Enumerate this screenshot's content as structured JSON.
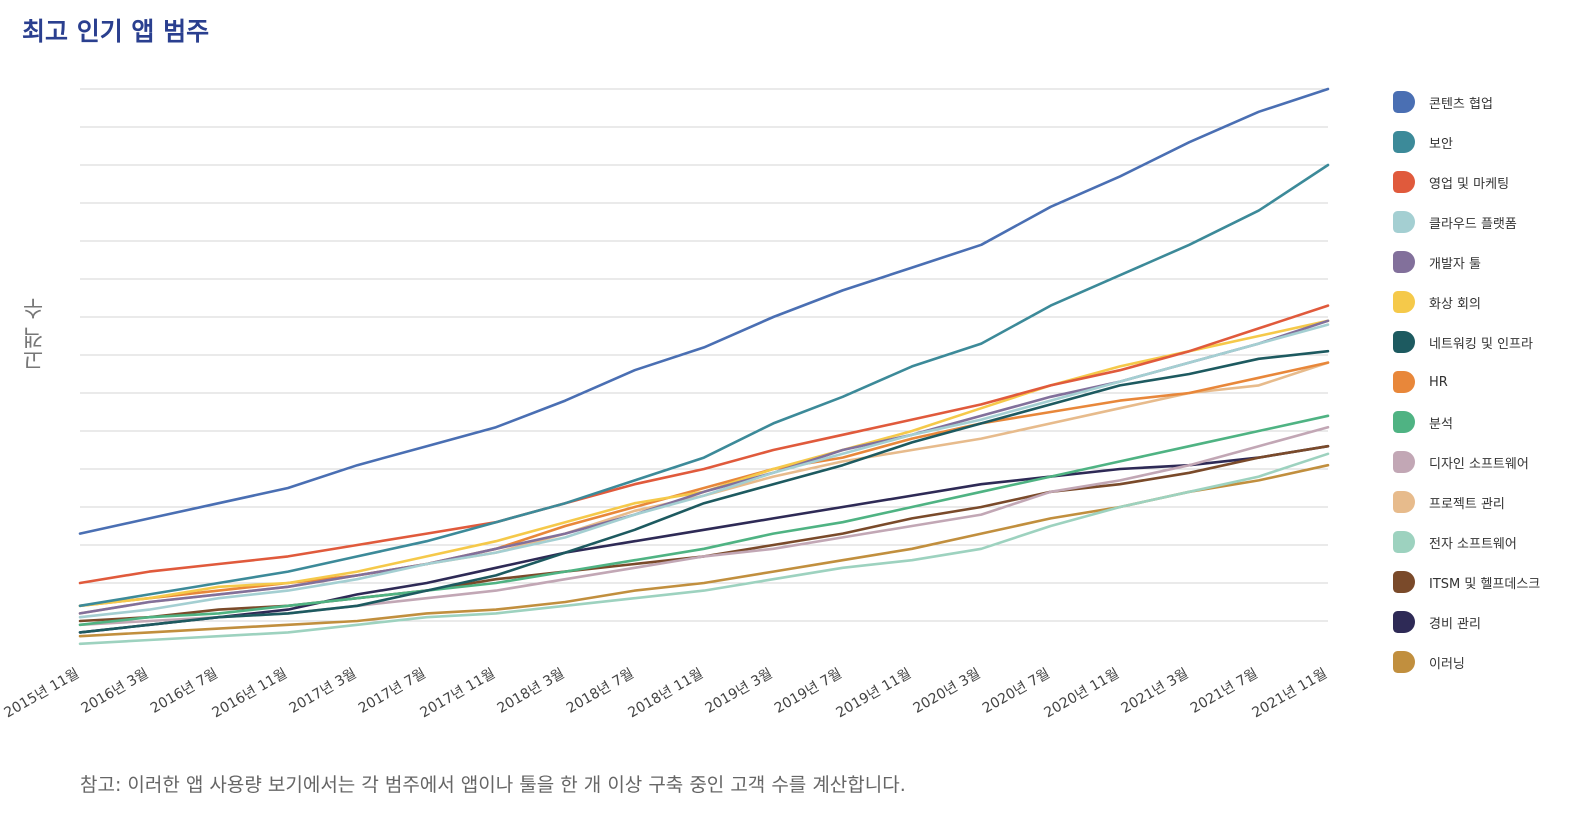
{
  "title": "최고 인기 앱 범주",
  "note": "참고: 이러한 앱 사용량 보기에서는 각 범주에서 앱이나 툴을 한 개 이상 구축 중인 고객 수를 계산합니다.",
  "chart_data": {
    "type": "line",
    "title": "최고 인기 앱 범주",
    "ylabel": "고객 수",
    "xlabel": "",
    "y_tick_labels": "none",
    "grid": true,
    "legend_position": "right",
    "x": [
      "2015년 11월",
      "2016년 3월",
      "2016년 7월",
      "2016년 11월",
      "2017년 3월",
      "2017년 7월",
      "2017년 11월",
      "2018년 3월",
      "2018년 7월",
      "2018년 11월",
      "2019년 3월",
      "2019년 7월",
      "2019년 11월",
      "2020년 3월",
      "2020년 7월",
      "2020년 11월",
      "2021년 3월",
      "2021년 7월",
      "2021년 11월"
    ],
    "ylim": [
      0,
      14
    ],
    "series": [
      {
        "name": "콘텐츠 협업",
        "color": "#4a6fb3",
        "values": [
          2.3,
          2.7,
          3.1,
          3.5,
          4.1,
          4.6,
          5.1,
          5.8,
          6.6,
          7.2,
          8.0,
          8.7,
          9.3,
          9.9,
          10.9,
          11.7,
          12.6,
          13.4,
          14.0
        ]
      },
      {
        "name": "보안",
        "color": "#3c8a99",
        "values": [
          0.4,
          0.7,
          1.0,
          1.3,
          1.7,
          2.1,
          2.6,
          3.1,
          3.7,
          4.3,
          5.2,
          5.9,
          6.7,
          7.3,
          8.3,
          9.1,
          9.9,
          10.8,
          12.0
        ]
      },
      {
        "name": "영업 및 마케팅",
        "color": "#e05a3c",
        "values": [
          1.0,
          1.3,
          1.5,
          1.7,
          2.0,
          2.3,
          2.6,
          3.1,
          3.6,
          4.0,
          4.5,
          4.9,
          5.3,
          5.7,
          6.2,
          6.6,
          7.1,
          7.7,
          8.3
        ]
      },
      {
        "name": "클라우드 플랫폼",
        "color": "#a4cfd2",
        "values": [
          0.1,
          0.3,
          0.6,
          0.8,
          1.1,
          1.5,
          1.8,
          2.2,
          2.8,
          3.3,
          3.9,
          4.4,
          4.9,
          5.3,
          5.8,
          6.3,
          6.8,
          7.3,
          7.8
        ]
      },
      {
        "name": "개발자 툴",
        "color": "#82709b",
        "values": [
          0.2,
          0.5,
          0.7,
          0.9,
          1.2,
          1.5,
          1.9,
          2.3,
          2.8,
          3.4,
          3.9,
          4.5,
          4.9,
          5.4,
          5.9,
          6.3,
          6.8,
          7.3,
          7.9
        ]
      },
      {
        "name": "화상 회의",
        "color": "#f5c94a",
        "values": [
          0.4,
          0.6,
          0.9,
          1.0,
          1.3,
          1.7,
          2.1,
          2.6,
          3.1,
          3.4,
          4.0,
          4.5,
          5.0,
          5.6,
          6.2,
          6.7,
          7.1,
          7.5,
          7.9
        ]
      },
      {
        "name": "네트워킹 및 인프라",
        "color": "#1d5a60",
        "values": [
          -0.3,
          -0.1,
          0.1,
          0.2,
          0.4,
          0.8,
          1.2,
          1.8,
          2.4,
          3.1,
          3.6,
          4.1,
          4.7,
          5.2,
          5.7,
          6.2,
          6.5,
          6.9,
          7.1
        ]
      },
      {
        "name": "HR",
        "color": "#e8873a",
        "values": [
          0.4,
          0.6,
          0.8,
          1.0,
          1.2,
          1.5,
          1.9,
          2.5,
          3.0,
          3.5,
          4.0,
          4.3,
          4.8,
          5.2,
          5.5,
          5.8,
          6.0,
          6.4,
          6.8
        ]
      },
      {
        "name": "분석",
        "color": "#4fb383",
        "values": [
          -0.1,
          0.1,
          0.2,
          0.4,
          0.6,
          0.8,
          1.0,
          1.3,
          1.6,
          1.9,
          2.3,
          2.6,
          3.0,
          3.4,
          3.8,
          4.2,
          4.6,
          5.0,
          5.4
        ]
      },
      {
        "name": "디자인 소프트웨어",
        "color": "#c2a7b5",
        "values": [
          -0.1,
          0.0,
          0.1,
          0.2,
          0.4,
          0.6,
          0.8,
          1.1,
          1.4,
          1.7,
          1.9,
          2.2,
          2.5,
          2.8,
          3.4,
          3.7,
          4.1,
          4.6,
          5.1
        ]
      },
      {
        "name": "프로젝트 관리",
        "color": "#e7bb8c",
        "values": [
          0.2,
          0.5,
          0.7,
          0.9,
          1.2,
          1.5,
          1.8,
          2.3,
          2.9,
          3.3,
          3.8,
          4.2,
          4.5,
          4.8,
          5.2,
          5.6,
          6.0,
          6.2,
          6.8
        ]
      },
      {
        "name": "전자 소프트웨어",
        "color": "#9dd2bf",
        "values": [
          -0.6,
          -0.5,
          -0.4,
          -0.3,
          -0.1,
          0.1,
          0.2,
          0.4,
          0.6,
          0.8,
          1.1,
          1.4,
          1.6,
          1.9,
          2.5,
          3.0,
          3.4,
          3.8,
          4.4
        ]
      },
      {
        "name": "ITSM 및 헬프데스크",
        "color": "#7a4a2a",
        "values": [
          0.0,
          0.1,
          0.3,
          0.4,
          0.6,
          0.8,
          1.1,
          1.3,
          1.5,
          1.7,
          2.0,
          2.3,
          2.7,
          3.0,
          3.4,
          3.6,
          3.9,
          4.3,
          4.6
        ]
      },
      {
        "name": "경비 관리",
        "color": "#2e2a56",
        "values": [
          -0.3,
          -0.1,
          0.1,
          0.3,
          0.7,
          1.0,
          1.4,
          1.8,
          2.1,
          2.4,
          2.7,
          3.0,
          3.3,
          3.6,
          3.8,
          4.0,
          4.1,
          4.3,
          4.6
        ]
      },
      {
        "name": "이러닝",
        "color": "#c18f3e",
        "values": [
          -0.4,
          -0.3,
          -0.2,
          -0.1,
          0.0,
          0.2,
          0.3,
          0.5,
          0.8,
          1.0,
          1.3,
          1.6,
          1.9,
          2.3,
          2.7,
          3.0,
          3.4,
          3.7,
          4.1
        ]
      }
    ]
  }
}
